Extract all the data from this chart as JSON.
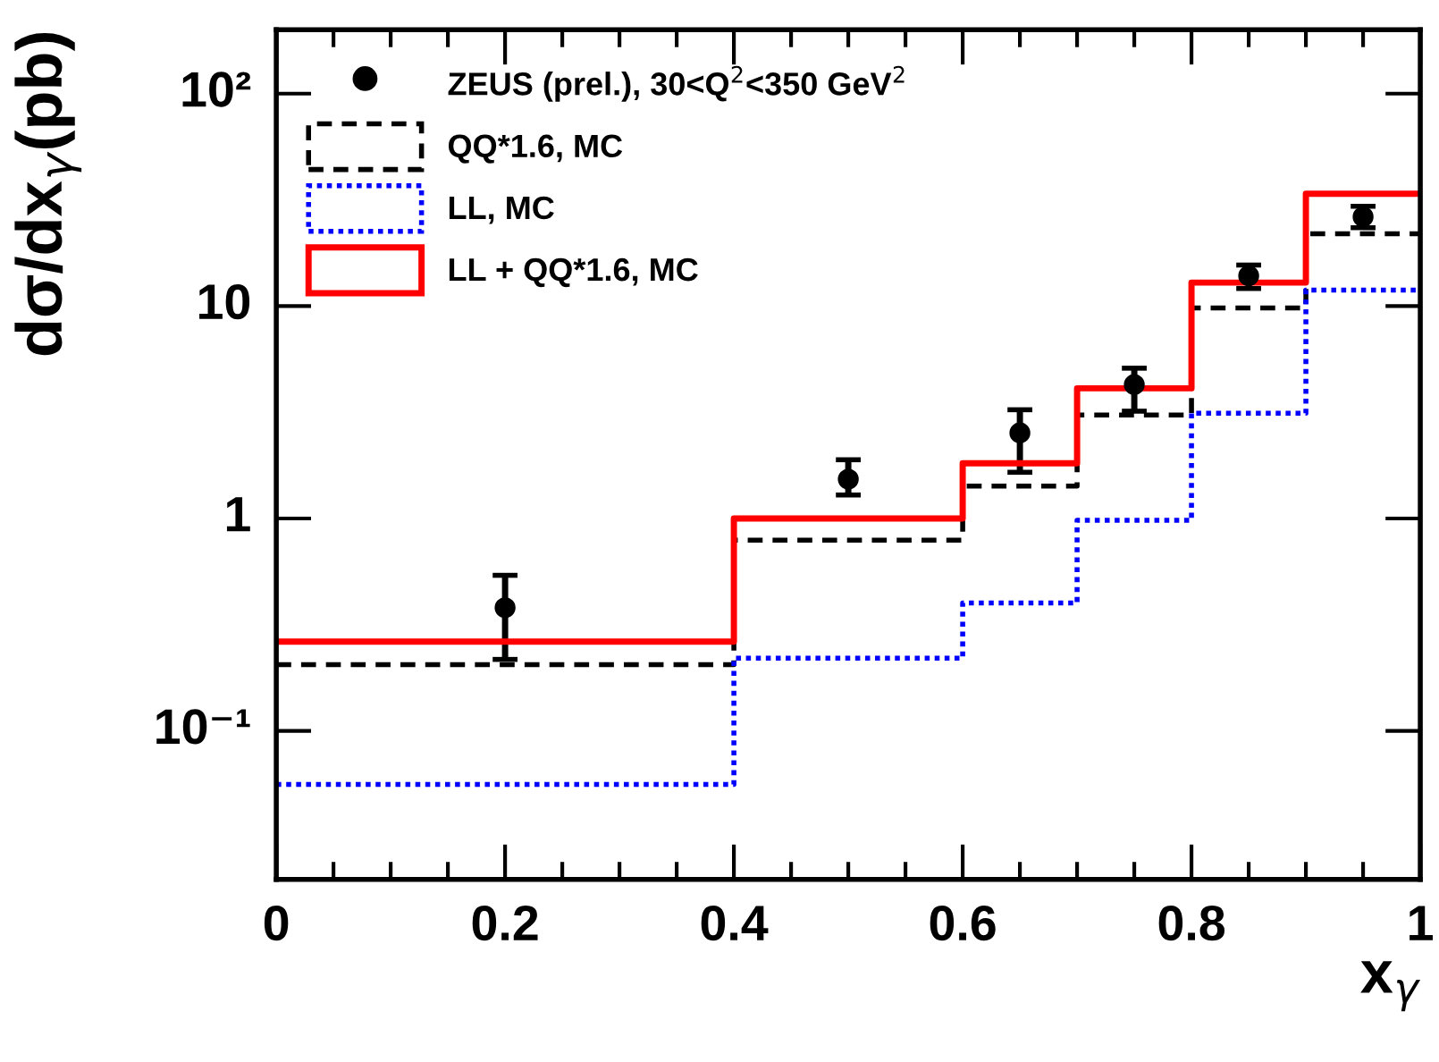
{
  "chart_data": {
    "type": "step",
    "xlabel": "x$_{γ}$",
    "ylabel": "dσ/dx$_{γ}$(pb)",
    "xlim": [
      0,
      1
    ],
    "xticks": [
      0,
      0.2,
      0.4,
      0.6,
      0.8,
      1
    ],
    "ylim": [
      0.02,
      200
    ],
    "yticks": [
      {
        "value": 0.1,
        "label": "10⁻¹"
      },
      1,
      10,
      {
        "value": 100,
        "label": "10²"
      }
    ],
    "log": "y",
    "legend": "top left",
    "grid": false,
    "series": [
      {
        "type": "scatter",
        "name": "ZEUS (prel.), 30<Q$^{2}$<350 GeV$^{2}$",
        "color": "#000000",
        "marker": "circle",
        "x": [
          0.2,
          0.5,
          0.65,
          0.75,
          0.85,
          0.95
        ],
        "values": [
          0.38,
          1.53,
          2.53,
          4.27,
          13.9,
          26.3
        ],
        "errors": [
          [
            0.217,
            0.54
          ],
          [
            1.29,
            1.89
          ],
          [
            1.65,
            3.25
          ],
          [
            3.2,
            5.1
          ],
          [
            12.1,
            15.6
          ],
          [
            23.4,
            29.5
          ]
        ]
      },
      {
        "name": "QQ*1.6, MC",
        "color": "#000000",
        "line_style": "dashed",
        "x": [
          0,
          0.4,
          0.6,
          0.7,
          0.8,
          0.9,
          1.0
        ],
        "values": [
          0.205,
          0.79,
          1.42,
          3.07,
          9.8,
          21.9,
          21.9
        ]
      },
      {
        "name": "LL, MC",
        "color": "#0000ff",
        "line_style": "dotted",
        "x": [
          0,
          0.4,
          0.6,
          0.7,
          0.8,
          0.9,
          1.0
        ],
        "values": [
          0.056,
          0.22,
          0.4,
          0.98,
          3.13,
          11.9,
          11.9
        ]
      },
      {
        "name": "LL + QQ*1.6, MC",
        "color": "#ff0000",
        "line_style": "solid",
        "x": [
          0,
          0.4,
          0.6,
          0.7,
          0.8,
          0.9,
          1.0
        ],
        "values": [
          0.263,
          1.0,
          1.82,
          4.1,
          12.9,
          33.8,
          33.8
        ]
      }
    ]
  }
}
